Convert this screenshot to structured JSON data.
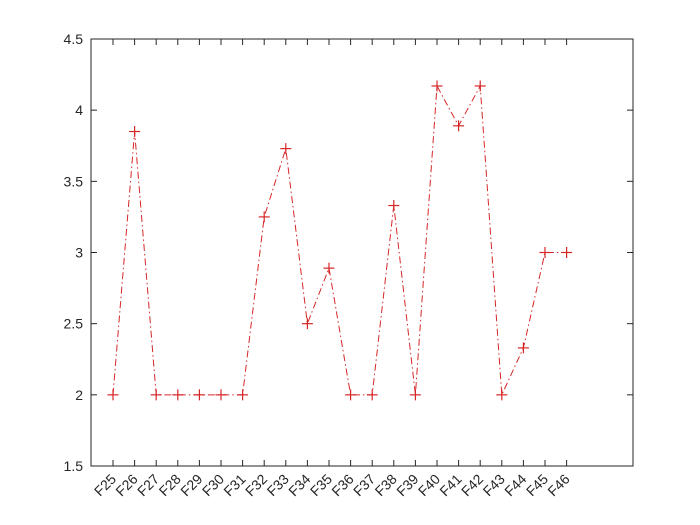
{
  "chart_data": {
    "type": "line",
    "title": "",
    "xlabel": "",
    "ylabel": "",
    "categories": [
      "F25",
      "F26",
      "F27",
      "F28",
      "F29",
      "F30",
      "F31",
      "F32",
      "F33",
      "F34",
      "F35",
      "F36",
      "F37",
      "F38",
      "F39",
      "F40",
      "F41",
      "F42",
      "F43",
      "F44",
      "F45",
      "F46"
    ],
    "series": [
      {
        "values": [
          2,
          3.85,
          2,
          2,
          2,
          2,
          2,
          3.25,
          3.73,
          2.5,
          2.89,
          2,
          2,
          3.33,
          2,
          4.17,
          3.89,
          4.17,
          2,
          2.33,
          3,
          3
        ],
        "color": "#d62728",
        "line_style": "dash-dot",
        "marker": "plus"
      }
    ],
    "ylim": [
      1.5,
      4.5
    ],
    "yticks": [
      "1.5",
      "2",
      "2.5",
      "3",
      "3.5",
      "4",
      "4.5"
    ],
    "grid": false,
    "legend": "none"
  }
}
